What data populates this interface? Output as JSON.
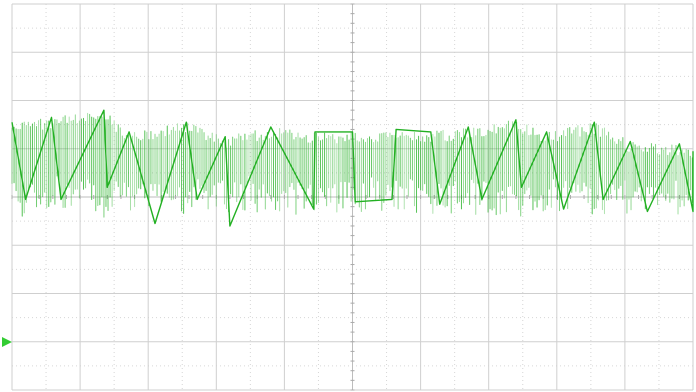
{
  "chart_data": {
    "type": "line",
    "title": "",
    "xlabel": "",
    "ylabel": "",
    "x_divisions": 10,
    "y_divisions": 8,
    "xlim": [
      0,
      10
    ],
    "ylim": [
      -4,
      4
    ],
    "grid": true,
    "series": [
      {
        "color": "#22b022",
        "envelope_peaks": [
          {
            "x": 0.0,
            "y": 1.55
          },
          {
            "x": 0.58,
            "y": 1.65
          },
          {
            "x": 1.35,
            "y": 1.8
          },
          {
            "x": 1.72,
            "y": 1.35
          },
          {
            "x": 2.56,
            "y": 1.55
          },
          {
            "x": 3.13,
            "y": 1.25
          },
          {
            "x": 3.8,
            "y": 1.45
          },
          {
            "x": 4.45,
            "y": 1.35
          },
          {
            "x": 5.0,
            "y": 1.35
          },
          {
            "x": 5.64,
            "y": 1.4
          },
          {
            "x": 6.15,
            "y": 1.35
          },
          {
            "x": 6.7,
            "y": 1.45
          },
          {
            "x": 7.4,
            "y": 1.6
          },
          {
            "x": 7.85,
            "y": 1.35
          },
          {
            "x": 8.55,
            "y": 1.55
          },
          {
            "x": 9.08,
            "y": 1.15
          },
          {
            "x": 9.8,
            "y": 1.1
          },
          {
            "x": 10.0,
            "y": 0.95
          }
        ],
        "sawtooth_troughs": [
          {
            "x": 0.2,
            "y": -0.05
          },
          {
            "x": 0.72,
            "y": -0.05
          },
          {
            "x": 1.4,
            "y": 0.2
          },
          {
            "x": 2.1,
            "y": -0.55
          },
          {
            "x": 2.72,
            "y": -0.05
          },
          {
            "x": 3.2,
            "y": -0.6
          },
          {
            "x": 4.43,
            "y": -0.25
          },
          {
            "x": 5.04,
            "y": -0.1
          },
          {
            "x": 5.58,
            "y": -0.05
          },
          {
            "x": 6.28,
            "y": -0.15
          },
          {
            "x": 6.9,
            "y": -0.05
          },
          {
            "x": 7.48,
            "y": 0.2
          },
          {
            "x": 8.1,
            "y": -0.25
          },
          {
            "x": 8.68,
            "y": -0.05
          },
          {
            "x": 9.33,
            "y": -0.3
          },
          {
            "x": 10.0,
            "y": -0.3
          }
        ],
        "lower_band": [
          0.25,
          0.45
        ]
      }
    ]
  },
  "screen": {
    "channel_marker_color": "#33cc33"
  }
}
